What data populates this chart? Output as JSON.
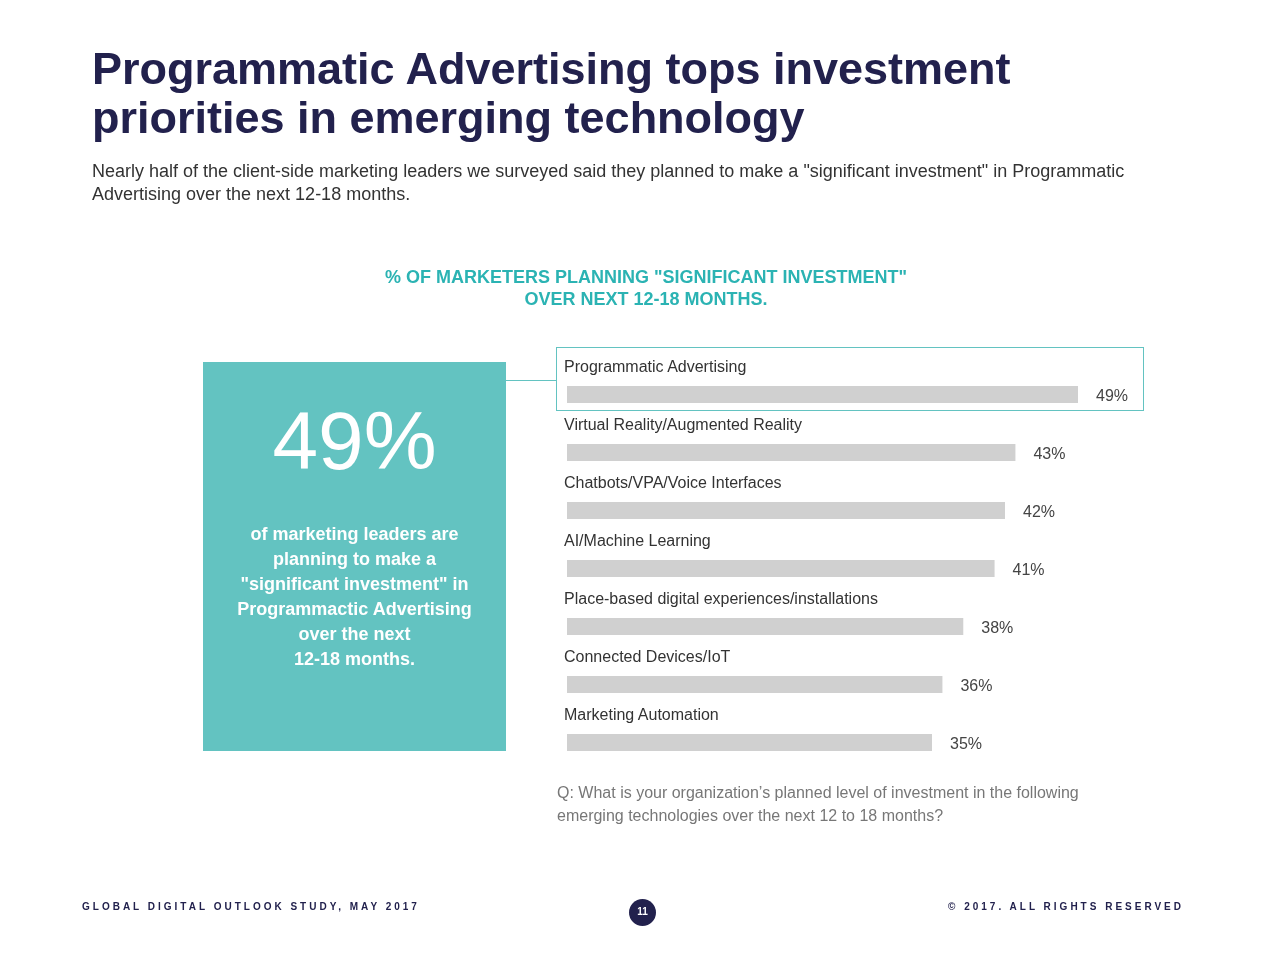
{
  "chart_data": {
    "type": "bar",
    "orientation": "horizontal",
    "title": "Programmatic Advertising tops investment priorities in emerging technology",
    "subtitle": "Nearly half of the client-side marketing leaders we surveyed said they planned to make a \"significant investment\" in Programmatic Advertising over the next 12-18 months.",
    "categories": [
      "Programmatic Advertising",
      "Virtual Reality/Augmented Reality",
      "Chatbots/VPA/Voice Interfaces",
      "AI/Machine Learning",
      "Place-based digital experiences/installations",
      "Connected Devices/IoT",
      "Marketing Automation"
    ],
    "values": [
      49,
      43,
      42,
      41,
      38,
      36,
      35
    ],
    "value_labels": [
      "49%",
      "43%",
      "42%",
      "41%",
      "38%",
      "36%",
      "35%"
    ],
    "color": "#d0d0d0",
    "tick_labels": "y",
    "annotations": [
      "% OF MARKETERS PLANNING \"SIGNIFICANT INVESTMENT\"\nOVER NEXT 12-18 MONTHS.",
      "49%",
      "of marketing leaders are\nplanning to make a\n\"significant investment\" in\nProgrammactic Advertising\nover the next\n12-18 months.",
      "Q:  What is your organization’s planned level of investment in the following emerging technologies over the next 12 to 18 months?",
      "GLOBAL DIGITAL OUTLOOK STUDY, MAY 2017",
      "© 2017. ALL RIGHTS RESERVED",
      "11"
    ]
  }
}
